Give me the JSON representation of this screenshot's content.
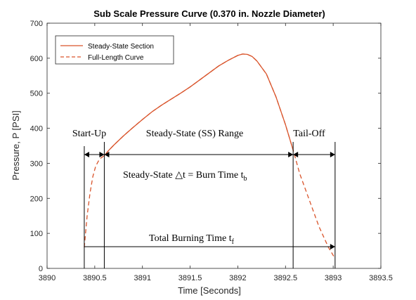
{
  "chart_data": {
    "type": "line",
    "title": "Sub Scale Pressure Curve (0.370 in. Nozzle Diameter)",
    "xlabel": "Time [Seconds]",
    "ylabel": "Pressure, P [PSI]",
    "xlim": [
      3890,
      3893.5
    ],
    "ylim": [
      0,
      700
    ],
    "xticks": [
      3890,
      3890.5,
      3891,
      3891.5,
      3892,
      3892.5,
      3893,
      3893.5
    ],
    "xtick_labels": [
      "3890",
      "3890.5",
      "3891",
      "3891.5",
      "3892",
      "3892.5",
      "3893",
      "3893.5"
    ],
    "yticks": [
      0,
      100,
      200,
      300,
      400,
      500,
      600,
      700
    ],
    "ytick_labels": [
      "0",
      "100",
      "200",
      "300",
      "400",
      "500",
      "600",
      "700"
    ],
    "grid": false,
    "legend_position": "top-left",
    "series": [
      {
        "name": "Steady-State Section",
        "style": "solid",
        "color": "#d9542b",
        "x": [
          3890.6,
          3890.65,
          3890.7,
          3890.8,
          3890.9,
          3891.0,
          3891.1,
          3891.2,
          3891.3,
          3891.4,
          3891.5,
          3891.6,
          3891.7,
          3891.8,
          3891.9,
          3892.0,
          3892.05,
          3892.1,
          3892.15,
          3892.2,
          3892.3,
          3892.4,
          3892.5,
          3892.58
        ],
        "y": [
          322,
          338,
          352,
          378,
          402,
          425,
          447,
          466,
          483,
          500,
          518,
          538,
          558,
          578,
          594,
          608,
          612,
          611,
          605,
          592,
          555,
          490,
          410,
          338
        ]
      },
      {
        "name": "Full-Length Curve",
        "style": "dashed",
        "color": "#d9542b",
        "x": [
          3890.39,
          3890.42,
          3890.45,
          3890.48,
          3890.51,
          3890.55,
          3890.6,
          3890.65,
          3890.7,
          3890.8,
          3890.9,
          3891.0,
          3891.1,
          3891.2,
          3891.3,
          3891.4,
          3891.5,
          3891.6,
          3891.7,
          3891.8,
          3891.9,
          3892.0,
          3892.05,
          3892.1,
          3892.15,
          3892.2,
          3892.3,
          3892.4,
          3892.5,
          3892.58,
          3892.65,
          3892.75,
          3892.85,
          3892.95,
          3893.02
        ],
        "y": [
          60,
          150,
          215,
          262,
          292,
          312,
          322,
          338,
          352,
          378,
          402,
          425,
          447,
          466,
          483,
          500,
          518,
          538,
          558,
          578,
          594,
          608,
          612,
          611,
          605,
          592,
          555,
          490,
          410,
          338,
          270,
          195,
          120,
          60,
          28
        ]
      }
    ],
    "annotations": {
      "start_up": "Start-Up",
      "ss_range": "Steady-State (SS) Range",
      "tail_off": "Tail-Off",
      "burn_time_eq": "Steady-State △t = Burn Time t",
      "burn_time_sub": "b",
      "total_time": "Total Burning Time t",
      "total_time_sub": "f"
    },
    "markers": {
      "start_x": 3890.39,
      "ss_start_x": 3890.6,
      "ss_end_x": 3892.58,
      "end_x": 3893.02,
      "phase_arrow_y": 325,
      "total_arrow_y": 62
    }
  }
}
